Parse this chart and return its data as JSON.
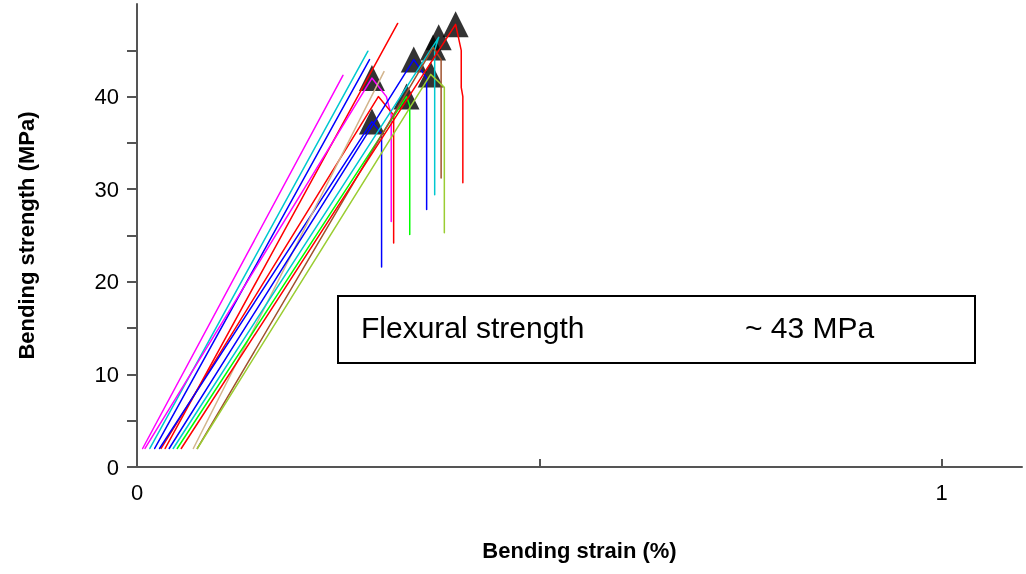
{
  "chart_data": {
    "type": "line",
    "xlabel": "Bending strain (%)",
    "ylabel": "Bending strength (MPa)",
    "annotations": [
      "Flexural strength",
      "~ 43 MPa"
    ],
    "xlim": [
      0,
      1.1
    ],
    "ylim": [
      0,
      50
    ],
    "xticks": [
      0,
      {
        "value": 0.5,
        "label": null
      },
      1
    ],
    "yticks": [
      0,
      {
        "value": 5,
        "label": null
      },
      10,
      {
        "value": 15,
        "label": null
      },
      20,
      {
        "value": 25,
        "label": null
      },
      30,
      {
        "value": 35,
        "label": null
      },
      40,
      {
        "value": 45,
        "label": null
      }
    ],
    "grid": false,
    "marker": "none",
    "line_style": "solid",
    "series": [
      {
        "color": "#ff00ff",
        "x": [
          0.007,
          0.256
        ],
        "values": [
          2,
          42.3
        ]
      },
      {
        "color": "#00c8d0",
        "x": [
          0.016,
          0.287
        ],
        "values": [
          2,
          44.9
        ]
      },
      {
        "color": "#0000ff",
        "x": [
          0.022,
          0.289
        ],
        "values": [
          2,
          44
        ]
      },
      {
        "color": "#ff0000",
        "x": [
          0.035,
          0.324
        ],
        "values": [
          2,
          47.9
        ]
      },
      {
        "color": "#ff00ff",
        "x": [
          0.01,
          0.292,
          0.31,
          0.316,
          0.316
        ],
        "values": [
          2,
          42,
          40,
          38,
          26.5
        ]
      },
      {
        "color": "#ff0000",
        "x": [
          0.03,
          0.3,
          0.319,
          0.319
        ],
        "values": [
          2,
          40,
          38,
          24.2
        ]
      },
      {
        "color": "#0000ff",
        "x": [
          0.028,
          0.292,
          0.304,
          0.304
        ],
        "values": [
          2,
          37.3,
          36,
          21.6
        ]
      },
      {
        "color": "#d2b48c",
        "x": [
          0.07,
          0.307
        ],
        "values": [
          2,
          42.7
        ]
      },
      {
        "color": "#0000ff",
        "x": [
          0.04,
          0.344,
          0.36,
          0.36
        ],
        "values": [
          2,
          44,
          42,
          27.8
        ]
      },
      {
        "color": "#00ff00",
        "x": [
          0.05,
          0.335,
          0.339,
          0.339
        ],
        "values": [
          2,
          40,
          39,
          25.1
        ]
      },
      {
        "color": "#00c8d0",
        "x": [
          0.045,
          0.375,
          0.37,
          0.37
        ],
        "values": [
          2,
          46.4,
          45,
          29.4
        ]
      },
      {
        "color": "#a0522d",
        "x": [
          0.075,
          0.368,
          0.378,
          0.378
        ],
        "values": [
          2,
          45.3,
          44,
          31.2
        ]
      },
      {
        "color": "#9acd32",
        "x": [
          0.075,
          0.365,
          0.382,
          0.382
        ],
        "values": [
          2,
          42.4,
          41,
          25.3
        ]
      },
      {
        "color": "#ff0000",
        "x": [
          0.055,
          0.396,
          0.403,
          0.403,
          0.405,
          0.405
        ],
        "values": [
          2,
          47.8,
          45,
          41,
          40,
          30.7
        ]
      },
      {
        "type": "scatter",
        "marker": "triangle",
        "color": "#000000",
        "x": [
          0.292,
          0.292,
          0.344,
          0.335,
          0.375,
          0.368,
          0.365,
          0.396
        ],
        "values": [
          42,
          37.3,
          44,
          40,
          46.4,
          45.3,
          42.4,
          47.8
        ]
      }
    ]
  }
}
